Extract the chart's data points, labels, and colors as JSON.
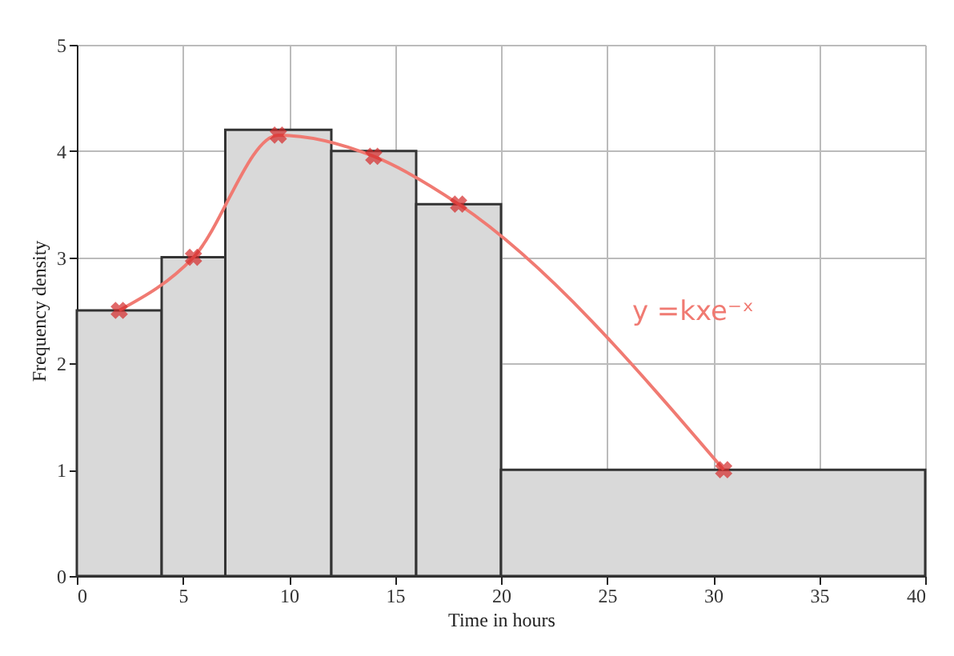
{
  "chart_data": {
    "type": "histogram",
    "xlabel": "Time in hours",
    "ylabel": "Frequency density",
    "bins": [
      0,
      4,
      7,
      12,
      16,
      20,
      40
    ],
    "values": [
      2.5,
      3.0,
      4.2,
      4.0,
      3.5,
      1.0
    ],
    "color": "#d9d9d9",
    "series": [
      {
        "type": "line",
        "x": [
          2,
          5.5,
          9.5,
          14,
          18,
          30.5
        ],
        "values": [
          2.5,
          3.0,
          4.15,
          3.95,
          3.5,
          1.0
        ],
        "color": "#f07a72",
        "marker": "cross"
      }
    ],
    "annotations": [
      "y =kxe⁻ˣ"
    ],
    "xlim": [
      0,
      40
    ],
    "xticks": [
      0,
      5,
      10,
      15,
      20,
      25,
      30,
      35,
      40
    ],
    "ylim": [
      0,
      5
    ],
    "yticks": [
      0,
      1,
      2,
      3,
      4,
      5
    ],
    "grid": true
  }
}
